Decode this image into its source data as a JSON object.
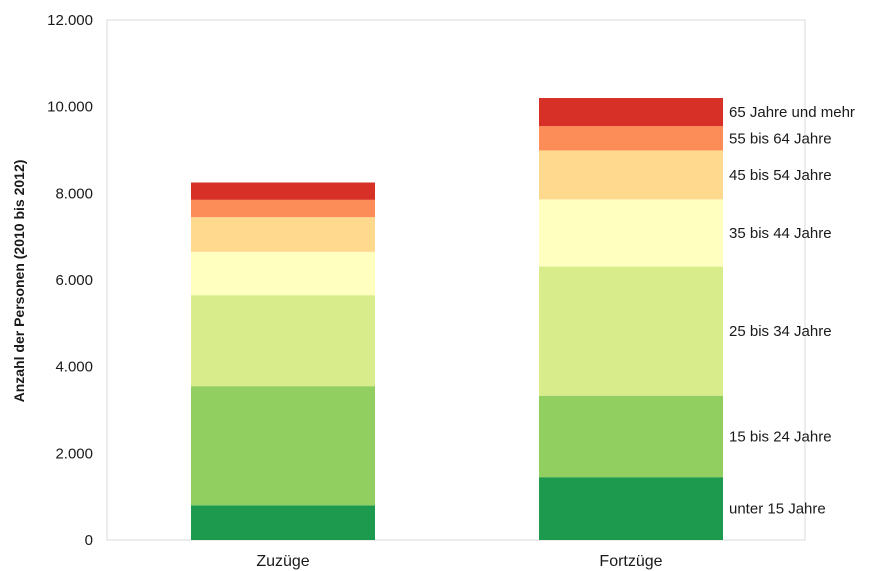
{
  "chart_data": {
    "type": "bar",
    "stacked": true,
    "categories": [
      "Zuzüge",
      "Fortzüge"
    ],
    "series": [
      {
        "name": "unter 15 Jahre",
        "values": [
          800,
          1450
        ],
        "color": "#1e9a4e"
      },
      {
        "name": "15 bis 24 Jahre",
        "values": [
          2750,
          1880
        ],
        "color": "#91cf60"
      },
      {
        "name": "25 bis 34 Jahre",
        "values": [
          2100,
          2980
        ],
        "color": "#d9ec8b"
      },
      {
        "name": "35 bis 44 Jahre",
        "values": [
          1000,
          1550
        ],
        "color": "#ffffbf"
      },
      {
        "name": "45 bis 54 Jahre",
        "values": [
          800,
          1130
        ],
        "color": "#fed98e"
      },
      {
        "name": "55 bis 64 Jahre",
        "values": [
          400,
          560
        ],
        "color": "#fc8d59"
      },
      {
        "name": "65 Jahre und mehr",
        "values": [
          400,
          650
        ],
        "color": "#d73027"
      }
    ],
    "ylabel": "Anzahl der Personen (2010 bis 2012)",
    "xlabel": "",
    "ylim": [
      0,
      12000
    ],
    "y_ticks": [
      {
        "value": 0,
        "label": "0"
      },
      {
        "value": 2000,
        "label": "2.000"
      },
      {
        "value": 4000,
        "label": "4.000"
      },
      {
        "value": 6000,
        "label": "6.000"
      },
      {
        "value": 8000,
        "label": "8.000"
      },
      {
        "value": 10000,
        "label": "10.000"
      },
      {
        "value": 12000,
        "label": "12.000"
      }
    ],
    "grid": false,
    "legend": "right, labels beside the Fortzüge bar"
  }
}
